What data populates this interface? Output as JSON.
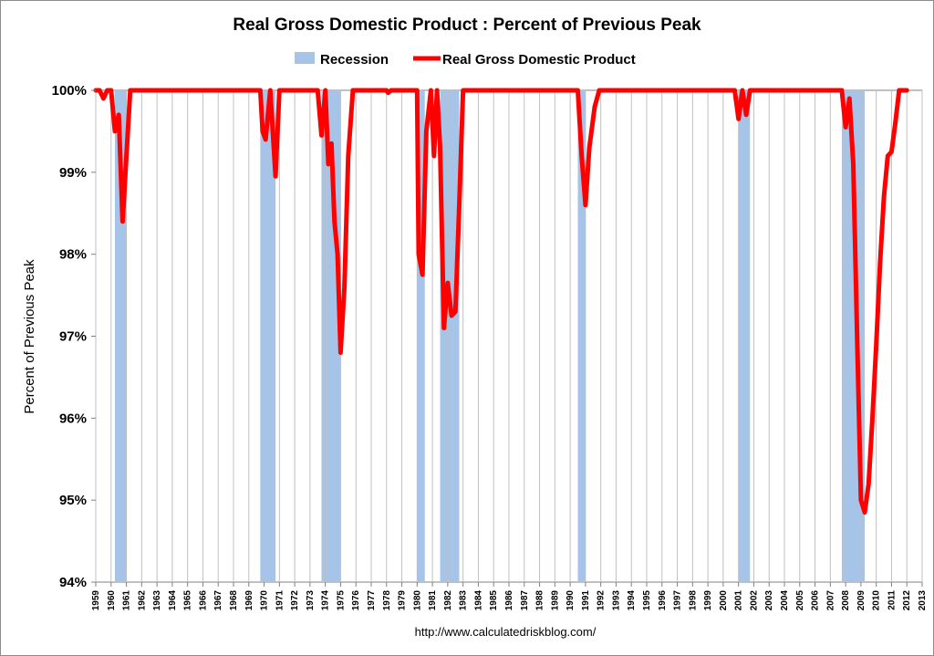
{
  "chart_data": {
    "type": "line",
    "title": "Real Gross Domestic Product : Percent of Previous Peak",
    "ylabel": "Percent of Previous Peak",
    "xlabel": "",
    "source": "http://www.calculatedriskblog.com/",
    "legend": {
      "position": "top-center",
      "items": [
        {
          "name": "Recession",
          "kind": "band",
          "color": "#a6c4e8"
        },
        {
          "name": "Real Gross Domestic Product",
          "kind": "line",
          "color": "#ff0000"
        }
      ]
    },
    "ylim": [
      94,
      100
    ],
    "yticks": [
      94,
      95,
      96,
      97,
      98,
      99,
      100
    ],
    "ytick_labels": [
      "94%",
      "95%",
      "96%",
      "97%",
      "98%",
      "99%",
      "100%"
    ],
    "xlim": [
      1959.0,
      2013.0
    ],
    "xtick_labels": [
      "1959",
      "1960",
      "1961",
      "1962",
      "1963",
      "1964",
      "1965",
      "1966",
      "1967",
      "1968",
      "1969",
      "1970",
      "1971",
      "1972",
      "1973",
      "1974",
      "1975",
      "1976",
      "1977",
      "1978",
      "1979",
      "1980",
      "1981",
      "1982",
      "1983",
      "1984",
      "1985",
      "1986",
      "1987",
      "1988",
      "1989",
      "1990",
      "1991",
      "1992",
      "1993",
      "1994",
      "1995",
      "1996",
      "1997",
      "1998",
      "1999",
      "2000",
      "2001",
      "2002",
      "2003",
      "2004",
      "2005",
      "2006",
      "2007",
      "2008",
      "2009",
      "2010",
      "2011",
      "2012",
      "2013"
    ],
    "grid": true,
    "recessions": [
      {
        "start": 1960.25,
        "end": 1961.0
      },
      {
        "start": 1969.75,
        "end": 1970.75
      },
      {
        "start": 1973.75,
        "end": 1975.0
      },
      {
        "start": 1980.0,
        "end": 1980.5
      },
      {
        "start": 1981.5,
        "end": 1982.75
      },
      {
        "start": 1990.5,
        "end": 1991.0
      },
      {
        "start": 2001.0,
        "end": 2001.75
      },
      {
        "start": 2007.75,
        "end": 2009.25
      }
    ],
    "series": [
      {
        "name": "Real Gross Domestic Product",
        "color": "#ff0000",
        "points": [
          [
            1959.0,
            100
          ],
          [
            1959.25,
            100
          ],
          [
            1959.5,
            99.9
          ],
          [
            1959.75,
            100
          ],
          [
            1960.0,
            100
          ],
          [
            1960.25,
            99.5
          ],
          [
            1960.5,
            99.7
          ],
          [
            1960.75,
            98.4
          ],
          [
            1961.0,
            99.2
          ],
          [
            1961.25,
            100
          ],
          [
            1969.75,
            100
          ],
          [
            1969.9,
            99.5
          ],
          [
            1970.1,
            99.4
          ],
          [
            1970.4,
            100
          ],
          [
            1970.75,
            98.95
          ],
          [
            1971.0,
            100
          ],
          [
            1973.5,
            100
          ],
          [
            1973.75,
            99.45
          ],
          [
            1974.0,
            100
          ],
          [
            1974.2,
            99.1
          ],
          [
            1974.4,
            99.35
          ],
          [
            1974.6,
            98.4
          ],
          [
            1974.8,
            98.0
          ],
          [
            1975.0,
            96.8
          ],
          [
            1975.25,
            97.6
          ],
          [
            1975.5,
            99.2
          ],
          [
            1975.8,
            100
          ],
          [
            1978.0,
            100
          ],
          [
            1978.1,
            99.97
          ],
          [
            1978.3,
            100
          ],
          [
            1980.0,
            100
          ],
          [
            1980.1,
            98.0
          ],
          [
            1980.35,
            97.75
          ],
          [
            1980.6,
            99.5
          ],
          [
            1980.9,
            100
          ],
          [
            1981.1,
            99.2
          ],
          [
            1981.3,
            100
          ],
          [
            1981.5,
            99.3
          ],
          [
            1981.75,
            97.1
          ],
          [
            1982.0,
            97.65
          ],
          [
            1982.25,
            97.25
          ],
          [
            1982.5,
            97.3
          ],
          [
            1982.75,
            98.6
          ],
          [
            1983.0,
            100
          ],
          [
            1990.5,
            100
          ],
          [
            1990.75,
            99.2
          ],
          [
            1991.0,
            98.6
          ],
          [
            1991.25,
            99.3
          ],
          [
            1991.6,
            99.8
          ],
          [
            1991.9,
            100
          ],
          [
            2000.75,
            100
          ],
          [
            2001.0,
            99.65
          ],
          [
            2001.25,
            100
          ],
          [
            2001.5,
            99.7
          ],
          [
            2001.75,
            100
          ],
          [
            2007.75,
            100
          ],
          [
            2008.0,
            99.55
          ],
          [
            2008.25,
            99.9
          ],
          [
            2008.5,
            99.1
          ],
          [
            2008.75,
            97.0
          ],
          [
            2009.0,
            95.0
          ],
          [
            2009.25,
            94.85
          ],
          [
            2009.5,
            95.2
          ],
          [
            2009.75,
            96.0
          ],
          [
            2010.0,
            96.9
          ],
          [
            2010.25,
            97.9
          ],
          [
            2010.5,
            98.7
          ],
          [
            2010.75,
            99.2
          ],
          [
            2011.0,
            99.25
          ],
          [
            2011.25,
            99.6
          ],
          [
            2011.5,
            100
          ],
          [
            2012.0,
            100
          ]
        ]
      }
    ]
  }
}
